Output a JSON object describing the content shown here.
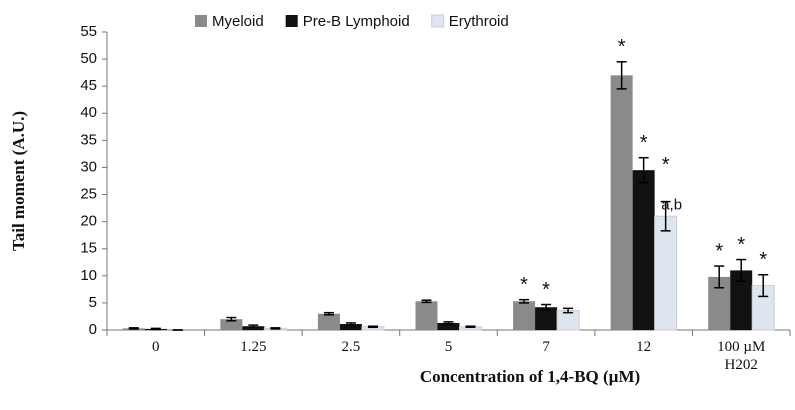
{
  "chart_data": {
    "type": "bar",
    "xlabel": "Concentration of 1,4-BQ (µM)",
    "ylabel": "Tail moment (A.U.)",
    "categories": [
      "0",
      "1.25",
      "2.5",
      "5",
      "7",
      "12",
      "100 µM H202"
    ],
    "series": [
      {
        "name": "Myeloid",
        "color": "#8a8a8a",
        "values": [
          0.3,
          2,
          3,
          5.3,
          5.3,
          47,
          9.8
        ],
        "errors": [
          0.1,
          0.3,
          0.2,
          0.2,
          0.3,
          2.5,
          2
        ]
      },
      {
        "name": "Pre-B Lymphoid",
        "color": "#111111",
        "values": [
          0.2,
          0.7,
          1.1,
          1.3,
          4.2,
          29.5,
          11
        ],
        "errors": [
          0.1,
          0.2,
          0.2,
          0.2,
          0.5,
          2.3,
          2
        ]
      },
      {
        "name": "Erythroid",
        "color": "#dfe5ef",
        "values": [
          0,
          0.3,
          0.6,
          0.6,
          3.6,
          21,
          8.2
        ],
        "errors": [
          0,
          0.1,
          0.1,
          0.1,
          0.4,
          2.7,
          2
        ]
      }
    ],
    "annotations": [
      {
        "text": "*",
        "series": 0,
        "category": 4
      },
      {
        "text": "*",
        "series": 1,
        "category": 4
      },
      {
        "text": "*",
        "series": 0,
        "category": 5
      },
      {
        "text": "*",
        "series": 1,
        "category": 5
      },
      {
        "text": "*",
        "series": 2,
        "category": 5
      },
      {
        "text": "a,b",
        "series": 2,
        "category": 5
      },
      {
        "text": "*",
        "series": 0,
        "category": 6
      },
      {
        "text": "*",
        "series": 1,
        "category": 6
      },
      {
        "text": "*",
        "series": 2,
        "category": 6
      }
    ],
    "ylim": [
      0,
      55
    ],
    "yticks": [
      0,
      5,
      10,
      15,
      20,
      25,
      30,
      35,
      40,
      45,
      50,
      55
    ],
    "grid": false,
    "legend": "top"
  }
}
